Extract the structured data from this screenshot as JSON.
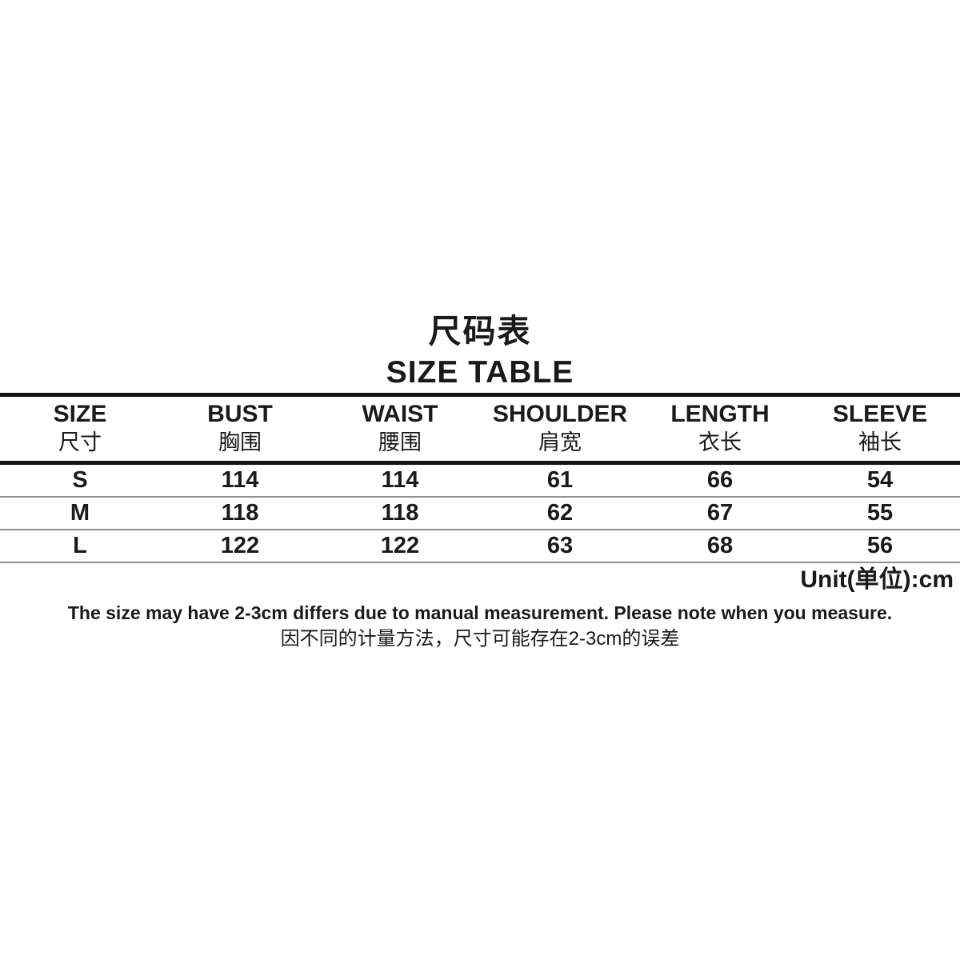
{
  "title": {
    "zh": "尺码表",
    "en": "SIZE TABLE"
  },
  "table": {
    "columns": [
      {
        "en": "SIZE",
        "zh": "尺寸"
      },
      {
        "en": "BUST",
        "zh": "胸围"
      },
      {
        "en": "WAIST",
        "zh": "腰围"
      },
      {
        "en": "SHOULDER",
        "zh": "肩宽"
      },
      {
        "en": "LENGTH",
        "zh": "衣长"
      },
      {
        "en": "SLEEVE",
        "zh": "袖长"
      }
    ],
    "rows": [
      {
        "label": "S",
        "values": [
          "114",
          "114",
          "61",
          "66",
          "54"
        ]
      },
      {
        "label": "M",
        "values": [
          "118",
          "118",
          "62",
          "67",
          "55"
        ]
      },
      {
        "label": "L",
        "values": [
          "122",
          "122",
          "63",
          "68",
          "56"
        ]
      }
    ]
  },
  "unit_label": "Unit(单位):cm",
  "notes": {
    "en": "The size may have 2-3cm differs due to manual measurement. Please note when you measure.",
    "zh": "因不同的计量方法，尺寸可能存在2-3cm的误差"
  },
  "colors": {
    "background": "#ffffff",
    "text": "#1a1a1a",
    "thick_line": "#111111",
    "thin_line": "#909090"
  }
}
